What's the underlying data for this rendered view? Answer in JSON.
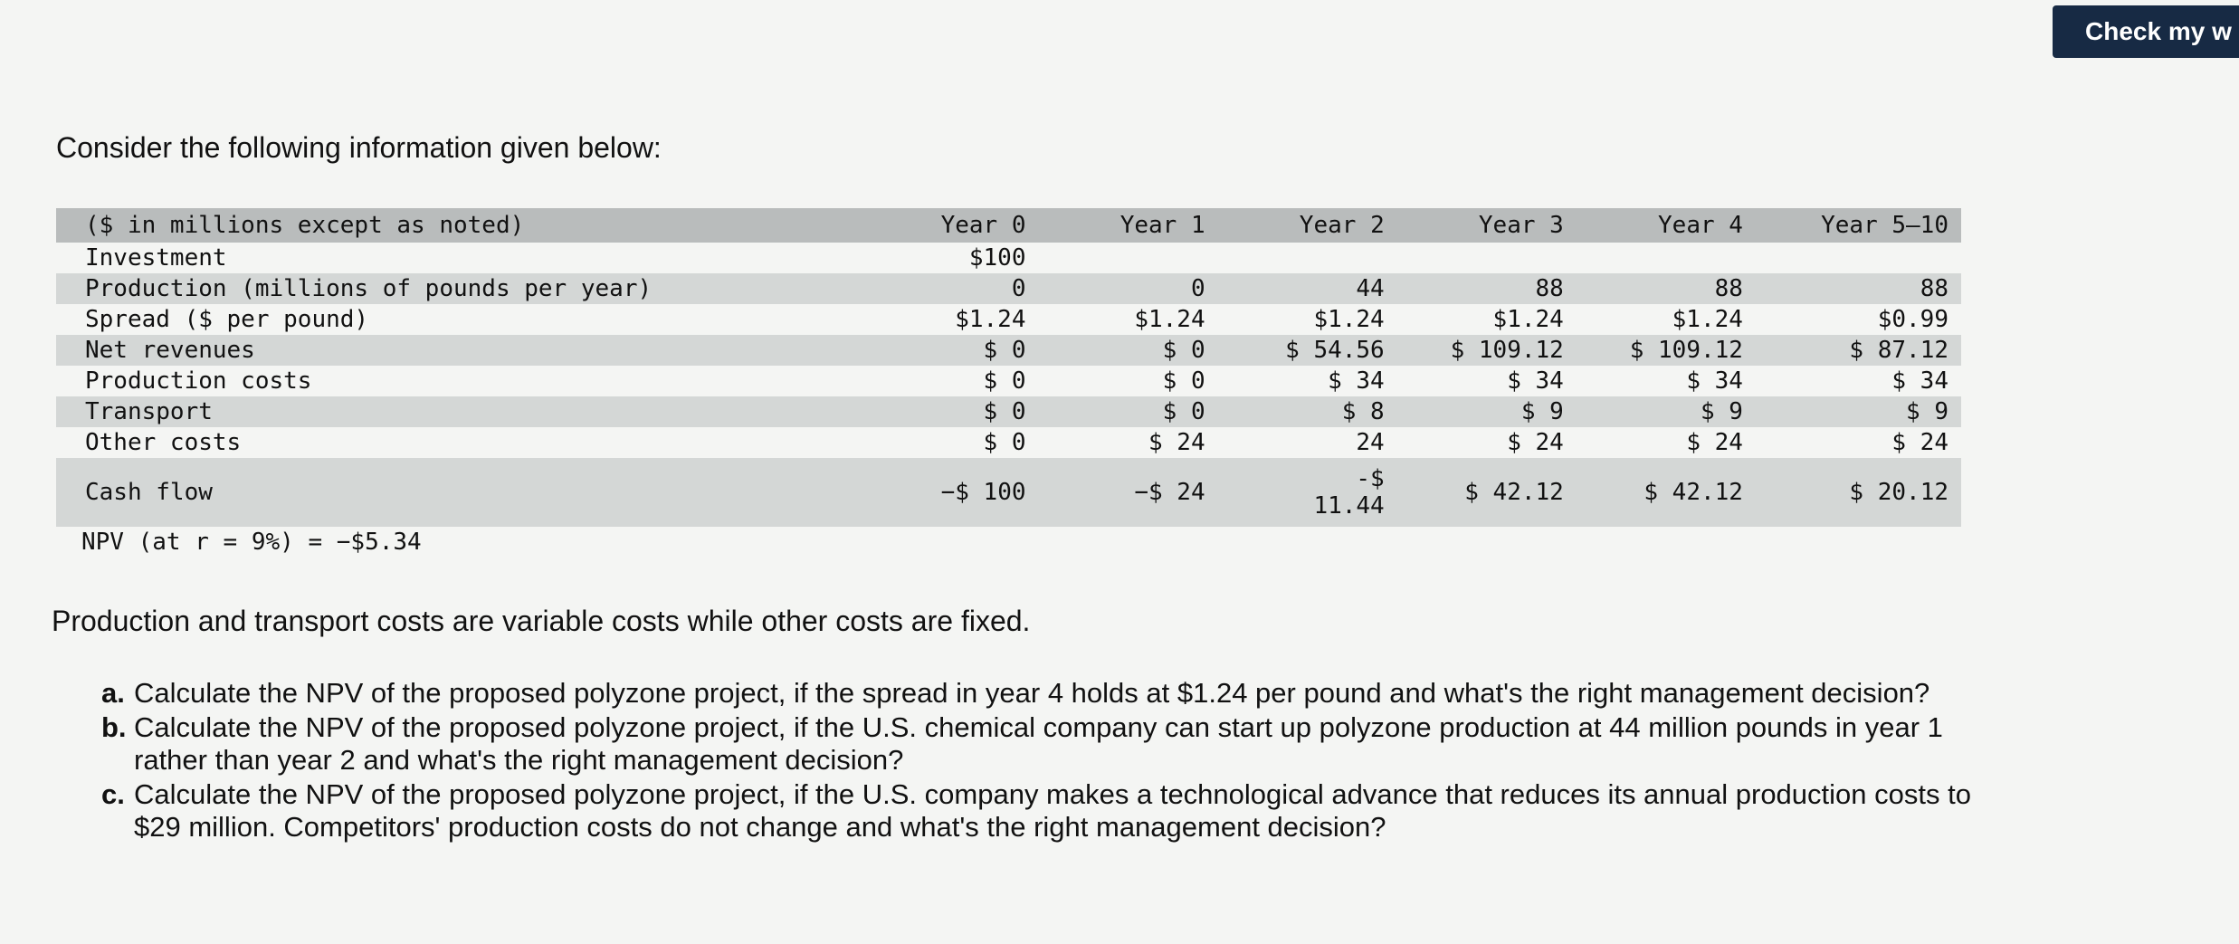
{
  "check_button": {
    "label": "Check my w"
  },
  "intro": "Consider the following information given below:",
  "table": {
    "header": [
      "($ in millions except as noted)",
      "Year 0",
      "Year 1",
      "Year 2",
      "Year 3",
      "Year 4",
      "Year 5–10"
    ],
    "rows": [
      {
        "label": "Investment",
        "values": [
          "$100",
          "",
          "",
          "",
          "",
          ""
        ]
      },
      {
        "label": "Production (millions of pounds per year)",
        "values": [
          "0",
          "0",
          "44",
          "88",
          "88",
          "88"
        ]
      },
      {
        "label": "Spread ($ per pound)",
        "values": [
          "$1.24",
          "$1.24",
          "$1.24",
          "$1.24",
          "$1.24",
          "$0.99"
        ]
      },
      {
        "label": "Net revenues",
        "values": [
          "$ 0",
          "$ 0",
          "$ 54.56",
          "$ 109.12",
          "$ 109.12",
          "$ 87.12"
        ]
      },
      {
        "label": "Production costs",
        "values": [
          "$ 0",
          "$ 0",
          "$ 34",
          "$ 34",
          "$ 34",
          "$ 34"
        ]
      },
      {
        "label": "Transport",
        "values": [
          "$ 0",
          "$ 0",
          "$ 8",
          "$ 9",
          "$ 9",
          "$ 9"
        ]
      },
      {
        "label": "Other costs",
        "values": [
          "$ 0",
          "$ 24",
          "24",
          "$ 24",
          "$ 24",
          "$ 24"
        ]
      },
      {
        "label": "Cash flow",
        "values": [
          "−$ 100",
          "−$ 24",
          "-$",
          "$ 42.12",
          "$ 42.12",
          "$ 20.12"
        ],
        "extra": "11.44"
      }
    ]
  },
  "npv_line": "NPV (at r = 9%) = −$5.34",
  "note": "Production and transport costs are variable costs while other costs are fixed.",
  "questions": [
    {
      "marker": "a.",
      "text": "Calculate the NPV of the proposed polyzone project, if the spread in year 4 holds at $1.24 per pound and what's the right management decision?"
    },
    {
      "marker": "b.",
      "text": "Calculate the NPV of the proposed polyzone project, if the U.S. chemical company can start up polyzone production at 44 million pounds in year 1 rather than year 2 and what's the right management decision?"
    },
    {
      "marker": "c.",
      "text": "Calculate the NPV of the proposed polyzone project, if the U.S. company makes a technological advance that reduces its annual production costs to $29 million. Competitors' production costs do not change and what's the right management decision?"
    }
  ]
}
